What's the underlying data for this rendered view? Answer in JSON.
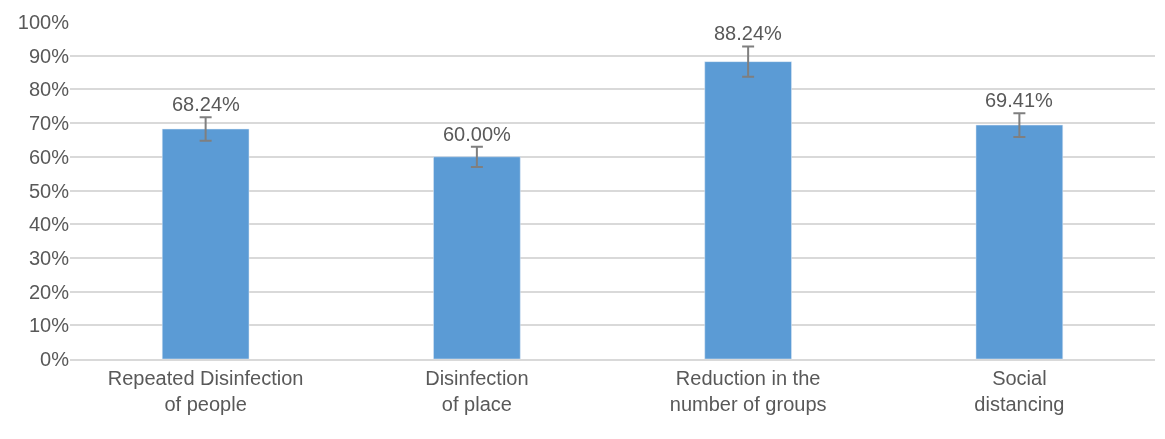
{
  "chart_data": {
    "type": "bar",
    "categories": [
      "Repeated Disinfection\nof people",
      "Disinfection\nof place",
      "Reduction in the\nnumber of groups",
      "Social\ndistancing"
    ],
    "values": [
      68.24,
      60.0,
      88.24,
      69.41
    ],
    "errors": [
      3.5,
      3,
      4.5,
      3.5
    ],
    "value_labels": [
      "68.24%",
      "60.00%",
      "88.24%",
      "69.41%"
    ],
    "color": "#5b9bd5",
    "ylim": [
      0,
      100
    ],
    "yticks": [
      {
        "value": 0,
        "label": "0%"
      },
      {
        "value": 10,
        "label": "10%"
      },
      {
        "value": 20,
        "label": "20%"
      },
      {
        "value": 30,
        "label": "30%"
      },
      {
        "value": 40,
        "label": "40%"
      },
      {
        "value": 50,
        "label": "50%"
      },
      {
        "value": 60,
        "label": "60%"
      },
      {
        "value": 70,
        "label": "70%"
      },
      {
        "value": 80,
        "label": "80%"
      },
      {
        "value": 90,
        "label": "90%"
      },
      {
        "value": 100,
        "label": "100%"
      }
    ],
    "grid": "y"
  }
}
